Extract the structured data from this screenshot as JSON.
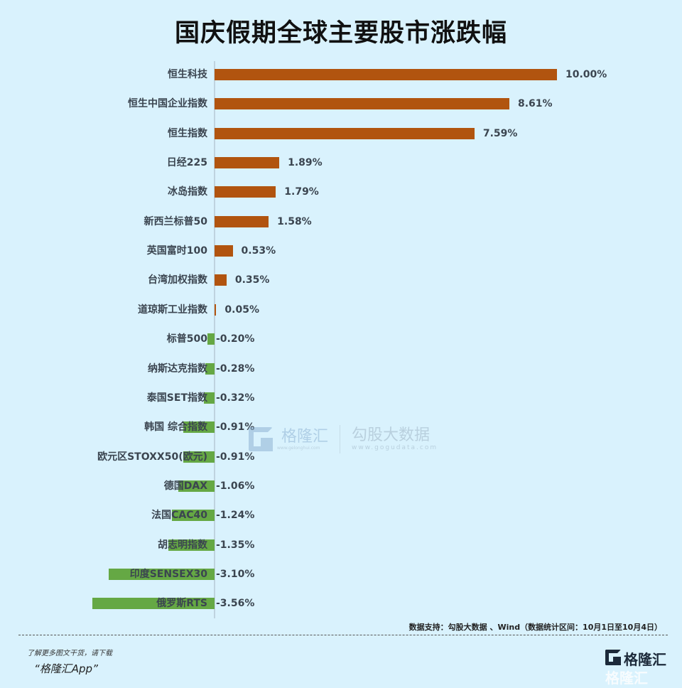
{
  "header": {
    "title": "国庆假期全球主要股市涨跌幅"
  },
  "chart_data": {
    "type": "bar",
    "orientation": "horizontal",
    "title": "国庆假期全球主要股市涨跌幅",
    "xlabel": "",
    "ylabel": "",
    "grid": false,
    "legend": null,
    "unit": "%",
    "categories": [
      "恒生科技",
      "恒生中国企业指数",
      "恒生指数",
      "日经225",
      "冰岛指数",
      "新西兰标普50",
      "英国富时100",
      "台湾加权指数",
      "道琼斯工业指数",
      "标普500",
      "纳斯达克指数",
      "泰国SET指数",
      "韩国 综合指数",
      "欧元区STOXX50(欧元)",
      "德国DAX",
      "法国CAC40",
      "胡志明指数",
      "印度SENSEX30",
      "俄罗斯RTS"
    ],
    "values": [
      10.0,
      8.61,
      7.59,
      1.89,
      1.79,
      1.58,
      0.53,
      0.35,
      0.05,
      -0.2,
      -0.28,
      -0.32,
      -0.91,
      -0.91,
      -1.06,
      -1.24,
      -1.35,
      -3.1,
      -3.56
    ],
    "value_labels": [
      "10.00%",
      "8.61%",
      "7.59%",
      "1.89%",
      "1.79%",
      "1.58%",
      "0.53%",
      "0.35%",
      "0.05%",
      "-0.20%",
      "-0.28%",
      "-0.32%",
      "-0.91%",
      "-0.91%",
      "-1.06%",
      "-1.24%",
      "-1.35%",
      "-3.10%",
      "-3.56%"
    ],
    "colors": {
      "positive": "#b1540f",
      "negative": "#65a844"
    }
  },
  "watermark": {
    "brand": "格隆汇",
    "brand_url": "www.gelonghui.com",
    "partner": "勾股大数据",
    "partner_url": "www.gogudata.com"
  },
  "footer": {
    "source": "数据支持：勾股大数据 、Wind（数据统计区间：10月1日至10月4日）",
    "promo_line1": "了解更多图文干货，请下载",
    "promo_line2": "“格隆汇App”",
    "brand_logo": "格隆汇"
  }
}
